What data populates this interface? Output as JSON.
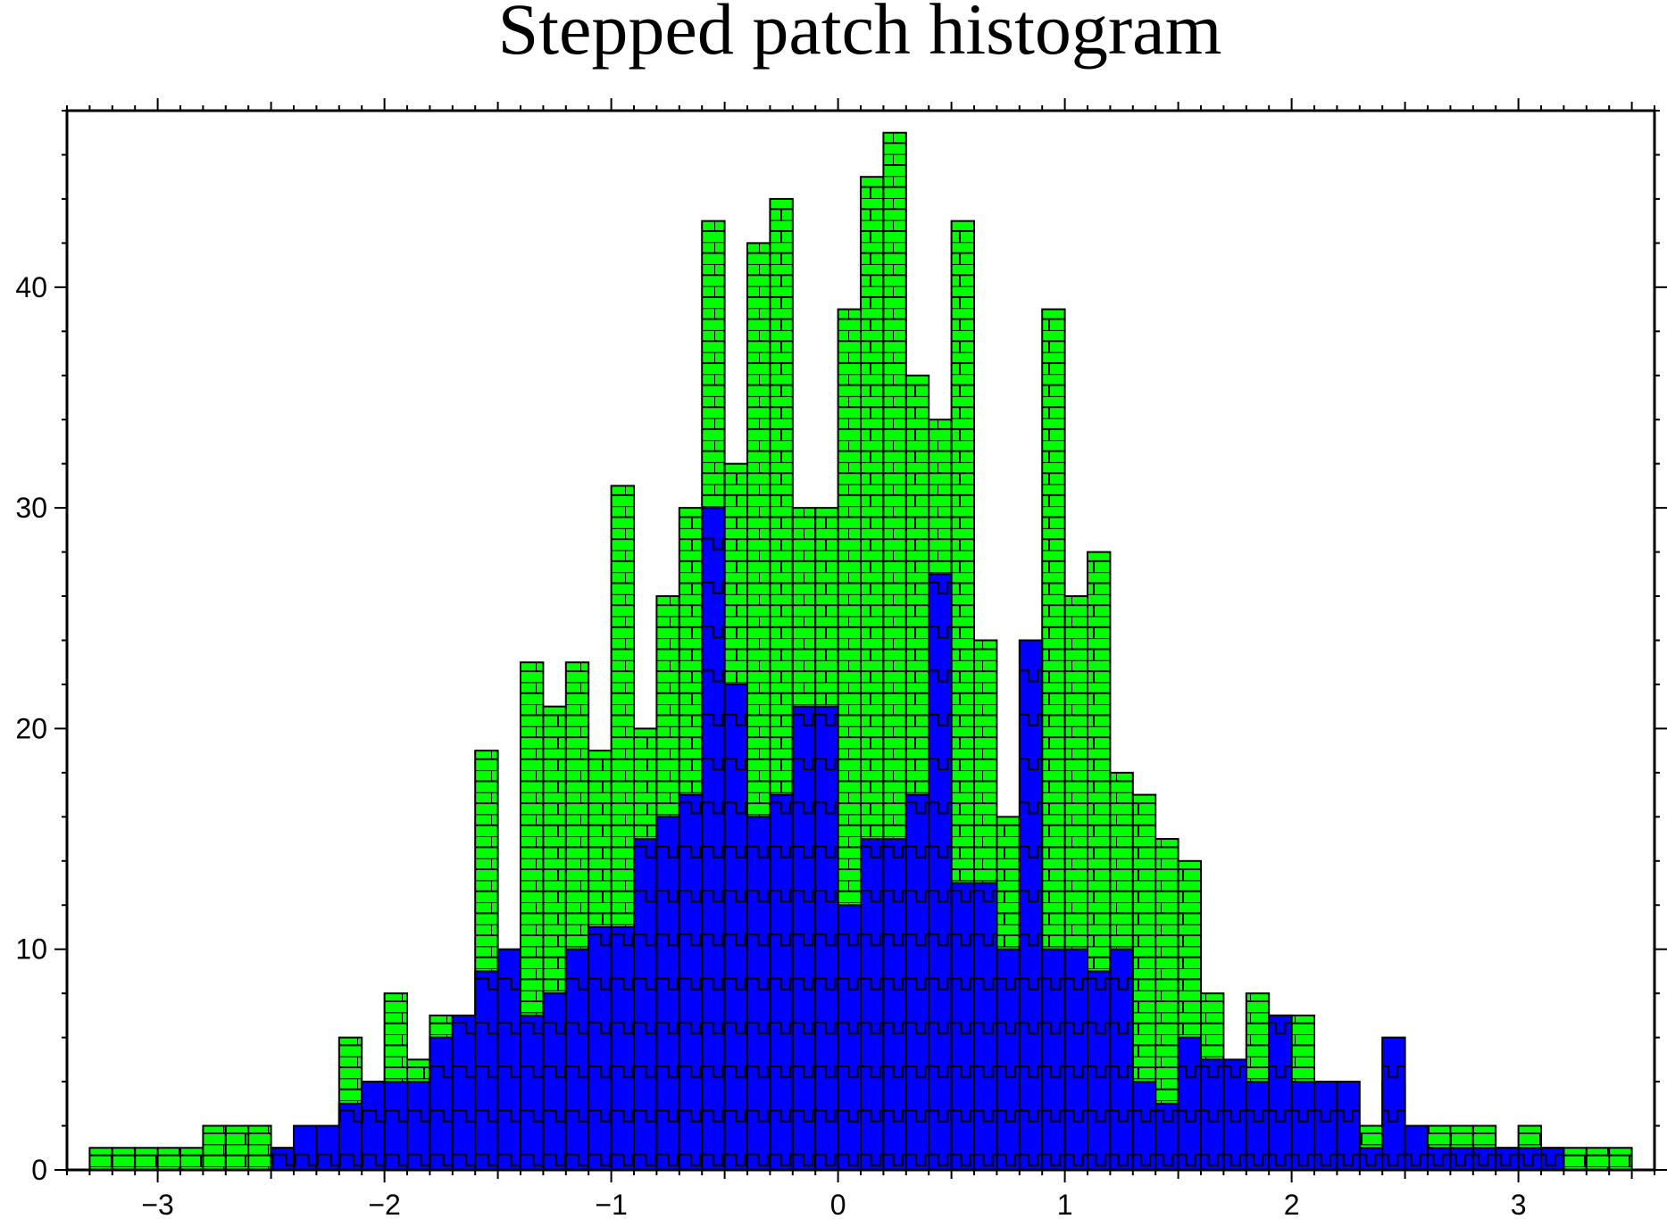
{
  "chart_data": {
    "type": "bar",
    "title": "Stepped patch histogram",
    "xlabel": "",
    "ylabel": "",
    "xlim": [
      -3.4,
      3.6
    ],
    "ylim": [
      0,
      48
    ],
    "bin_width": 0.1,
    "x_ticks": [
      -3,
      -2,
      -1,
      0,
      1,
      2,
      3
    ],
    "x_tick_labels": [
      "−3",
      "−2",
      "−1",
      "0",
      "1",
      "2",
      "3"
    ],
    "y_ticks": [
      0,
      10,
      20,
      30,
      40
    ],
    "y_tick_labels": [
      "0",
      "10",
      "20",
      "30",
      "40"
    ],
    "grid": false,
    "legend": "none",
    "series": [
      {
        "fill": "#00ff00",
        "pattern": "brick",
        "bin_starts": [
          -3.3,
          -3.2,
          -3.1,
          -3.0,
          -2.9,
          -2.8,
          -2.7,
          -2.6,
          -2.5,
          -2.4,
          -2.3,
          -2.2,
          -2.1,
          -2.0,
          -1.9,
          -1.8,
          -1.7,
          -1.6,
          -1.5,
          -1.4,
          -1.3,
          -1.2,
          -1.1,
          -1.0,
          -0.9,
          -0.8,
          -0.7,
          -0.6,
          -0.5,
          -0.4,
          -0.3,
          -0.2,
          -0.1,
          0.0,
          0.1,
          0.2,
          0.3,
          0.4,
          0.5,
          0.6,
          0.7,
          0.8,
          0.9,
          1.0,
          1.1,
          1.2,
          1.3,
          1.4,
          1.5,
          1.6,
          1.7,
          1.8,
          1.9,
          2.0,
          2.1,
          2.2,
          2.3,
          2.4,
          2.5,
          2.6,
          2.7,
          2.8,
          2.9,
          3.0,
          3.1,
          3.2,
          3.3,
          3.4
        ],
        "counts": [
          1,
          1,
          1,
          1,
          1,
          2,
          2,
          2,
          1,
          0,
          0,
          6,
          4,
          8,
          5,
          7,
          6,
          19,
          8,
          23,
          21,
          23,
          19,
          31,
          20,
          26,
          30,
          43,
          32,
          42,
          44,
          30,
          30,
          39,
          45,
          47,
          36,
          34,
          43,
          24,
          16,
          16,
          39,
          26,
          28,
          18,
          17,
          15,
          14,
          8,
          3,
          8,
          7,
          7,
          3,
          2,
          2,
          4,
          1,
          2,
          2,
          2,
          1,
          2,
          1,
          1,
          1,
          1
        ]
      },
      {
        "fill": "#0000ff",
        "pattern": "step-wave",
        "bin_starts": [
          -3.3,
          -3.2,
          -3.1,
          -3.0,
          -2.9,
          -2.8,
          -2.7,
          -2.6,
          -2.5,
          -2.4,
          -2.3,
          -2.2,
          -2.1,
          -2.0,
          -1.9,
          -1.8,
          -1.7,
          -1.6,
          -1.5,
          -1.4,
          -1.3,
          -1.2,
          -1.1,
          -1.0,
          -0.9,
          -0.8,
          -0.7,
          -0.6,
          -0.5,
          -0.4,
          -0.3,
          -0.2,
          -0.1,
          0.0,
          0.1,
          0.2,
          0.3,
          0.4,
          0.5,
          0.6,
          0.7,
          0.8,
          0.9,
          1.0,
          1.1,
          1.2,
          1.3,
          1.4,
          1.5,
          1.6,
          1.7,
          1.8,
          1.9,
          2.0,
          2.1,
          2.2,
          2.3,
          2.4,
          2.5,
          2.6,
          2.7,
          2.8,
          2.9,
          3.0,
          3.1,
          3.2,
          3.3,
          3.4
        ],
        "counts": [
          0,
          0,
          0,
          0,
          0,
          0,
          0,
          0,
          1,
          2,
          2,
          3,
          4,
          4,
          4,
          6,
          7,
          9,
          10,
          7,
          8,
          10,
          11,
          11,
          15,
          16,
          17,
          30,
          22,
          16,
          17,
          21,
          21,
          12,
          15,
          15,
          17,
          27,
          13,
          13,
          10,
          24,
          10,
          10,
          9,
          10,
          4,
          3,
          6,
          5,
          5,
          4,
          7,
          4,
          4,
          4,
          1,
          6,
          2,
          1,
          1,
          1,
          1,
          1,
          1,
          0,
          0,
          0
        ]
      }
    ]
  }
}
